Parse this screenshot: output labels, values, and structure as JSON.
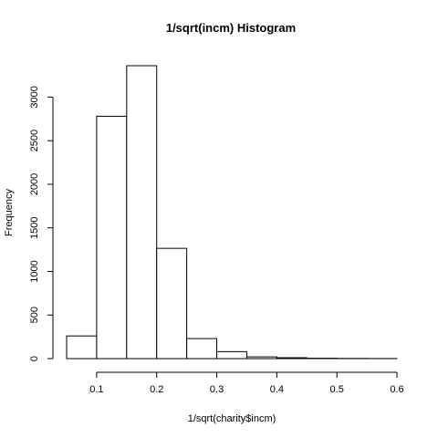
{
  "chart_data": {
    "type": "bar",
    "title": "1/sqrt(incm) Histogram",
    "xlabel": "1/sqrt(charity$incm)",
    "ylabel": "Frequency",
    "bins": [
      {
        "from": 0.05,
        "to": 0.1,
        "count": 260
      },
      {
        "from": 0.1,
        "to": 0.15,
        "count": 2780
      },
      {
        "from": 0.15,
        "to": 0.2,
        "count": 3360
      },
      {
        "from": 0.2,
        "to": 0.25,
        "count": 1265
      },
      {
        "from": 0.25,
        "to": 0.3,
        "count": 230
      },
      {
        "from": 0.3,
        "to": 0.35,
        "count": 80
      },
      {
        "from": 0.35,
        "to": 0.4,
        "count": 20
      },
      {
        "from": 0.4,
        "to": 0.45,
        "count": 10
      },
      {
        "from": 0.45,
        "to": 0.5,
        "count": 4
      },
      {
        "from": 0.5,
        "to": 0.55,
        "count": 2
      },
      {
        "from": 0.55,
        "to": 0.6,
        "count": 1
      }
    ],
    "x_ticks": [
      "0.1",
      "0.2",
      "0.3",
      "0.4",
      "0.5",
      "0.6"
    ],
    "x_tick_values": [
      0.1,
      0.2,
      0.3,
      0.4,
      0.5,
      0.6
    ],
    "y_ticks": [
      "0",
      "500",
      "1000",
      "1500",
      "2000",
      "2500",
      "3000"
    ],
    "y_tick_values": [
      0,
      500,
      1000,
      1500,
      2000,
      2500,
      3000
    ],
    "xlim": [
      0.05,
      0.6
    ],
    "ylim": [
      0,
      3360
    ],
    "grid": false
  }
}
